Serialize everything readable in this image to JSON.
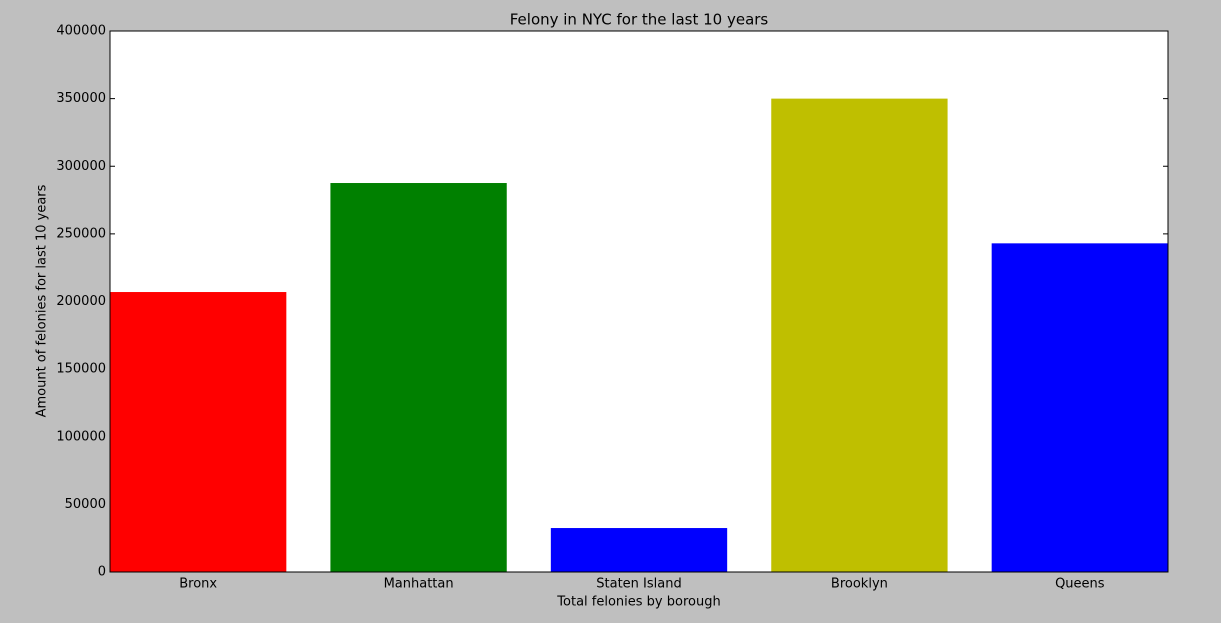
{
  "chart_data": {
    "type": "bar",
    "title": "Felony in NYC for the last 10 years",
    "xlabel": "Total felonies by borough",
    "ylabel": "Amount of felonies for last 10 years",
    "categories": [
      "Bronx",
      "Manhattan",
      "Staten Island",
      "Brooklyn",
      "Queens"
    ],
    "values": [
      207000,
      287600,
      32500,
      350000,
      243000
    ],
    "colors": [
      "#ff0000",
      "#008000",
      "#0000ff",
      "#bfbf00",
      "#0000ff"
    ],
    "ylim": [
      0,
      400000
    ],
    "yticks": [
      0,
      50000,
      100000,
      150000,
      200000,
      250000,
      300000,
      350000,
      400000
    ]
  }
}
